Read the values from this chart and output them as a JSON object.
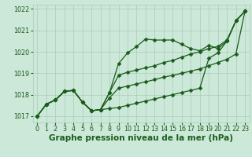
{
  "background_color": "#cce8d8",
  "plot_bg_color": "#cce8d8",
  "grid_color": "#aaccb8",
  "line_color": "#1a5c1a",
  "marker_color": "#1a5c1a",
  "title": "Graphe pression niveau de la mer (hPa)",
  "xlim": [
    -0.5,
    23.5
  ],
  "ylim": [
    1016.7,
    1022.2
  ],
  "xticks": [
    0,
    1,
    2,
    3,
    4,
    5,
    6,
    7,
    8,
    9,
    10,
    11,
    12,
    13,
    14,
    15,
    16,
    17,
    18,
    19,
    20,
    21,
    22,
    23
  ],
  "yticks": [
    1017,
    1018,
    1019,
    1020,
    1021,
    1022
  ],
  "series": [
    [
      1017.0,
      1017.55,
      1017.75,
      1018.15,
      1018.2,
      1017.65,
      1017.25,
      1017.3,
      1018.1,
      1019.45,
      1019.95,
      1020.25,
      1020.6,
      1020.55,
      1020.55,
      1020.55,
      1020.35,
      1020.15,
      1020.05,
      1020.3,
      1020.15,
      1020.5,
      1021.45,
      1021.9
    ],
    [
      1017.0,
      1017.55,
      1017.75,
      1018.15,
      1018.2,
      1017.65,
      1017.25,
      1017.3,
      1018.1,
      1018.9,
      1019.05,
      1019.15,
      1019.25,
      1019.35,
      1019.5,
      1019.6,
      1019.75,
      1019.9,
      1020.0,
      1020.15,
      1020.25,
      1020.55,
      1021.45,
      1021.9
    ],
    [
      1017.0,
      1017.55,
      1017.75,
      1018.15,
      1018.2,
      1017.65,
      1017.25,
      1017.3,
      1017.85,
      1018.3,
      1018.4,
      1018.5,
      1018.6,
      1018.7,
      1018.82,
      1018.9,
      1019.0,
      1019.1,
      1019.2,
      1019.35,
      1019.5,
      1019.65,
      1019.9,
      1021.9
    ],
    [
      1017.0,
      1017.55,
      1017.75,
      1018.15,
      1018.2,
      1017.65,
      1017.25,
      1017.3,
      1017.35,
      1017.4,
      1017.5,
      1017.6,
      1017.7,
      1017.8,
      1017.9,
      1018.0,
      1018.1,
      1018.2,
      1018.3,
      1019.7,
      1019.95,
      1020.5,
      1021.45,
      1021.9
    ]
  ],
  "title_fontsize": 7.5,
  "tick_fontsize": 5.8,
  "marker_size": 2.5,
  "line_width": 0.9
}
